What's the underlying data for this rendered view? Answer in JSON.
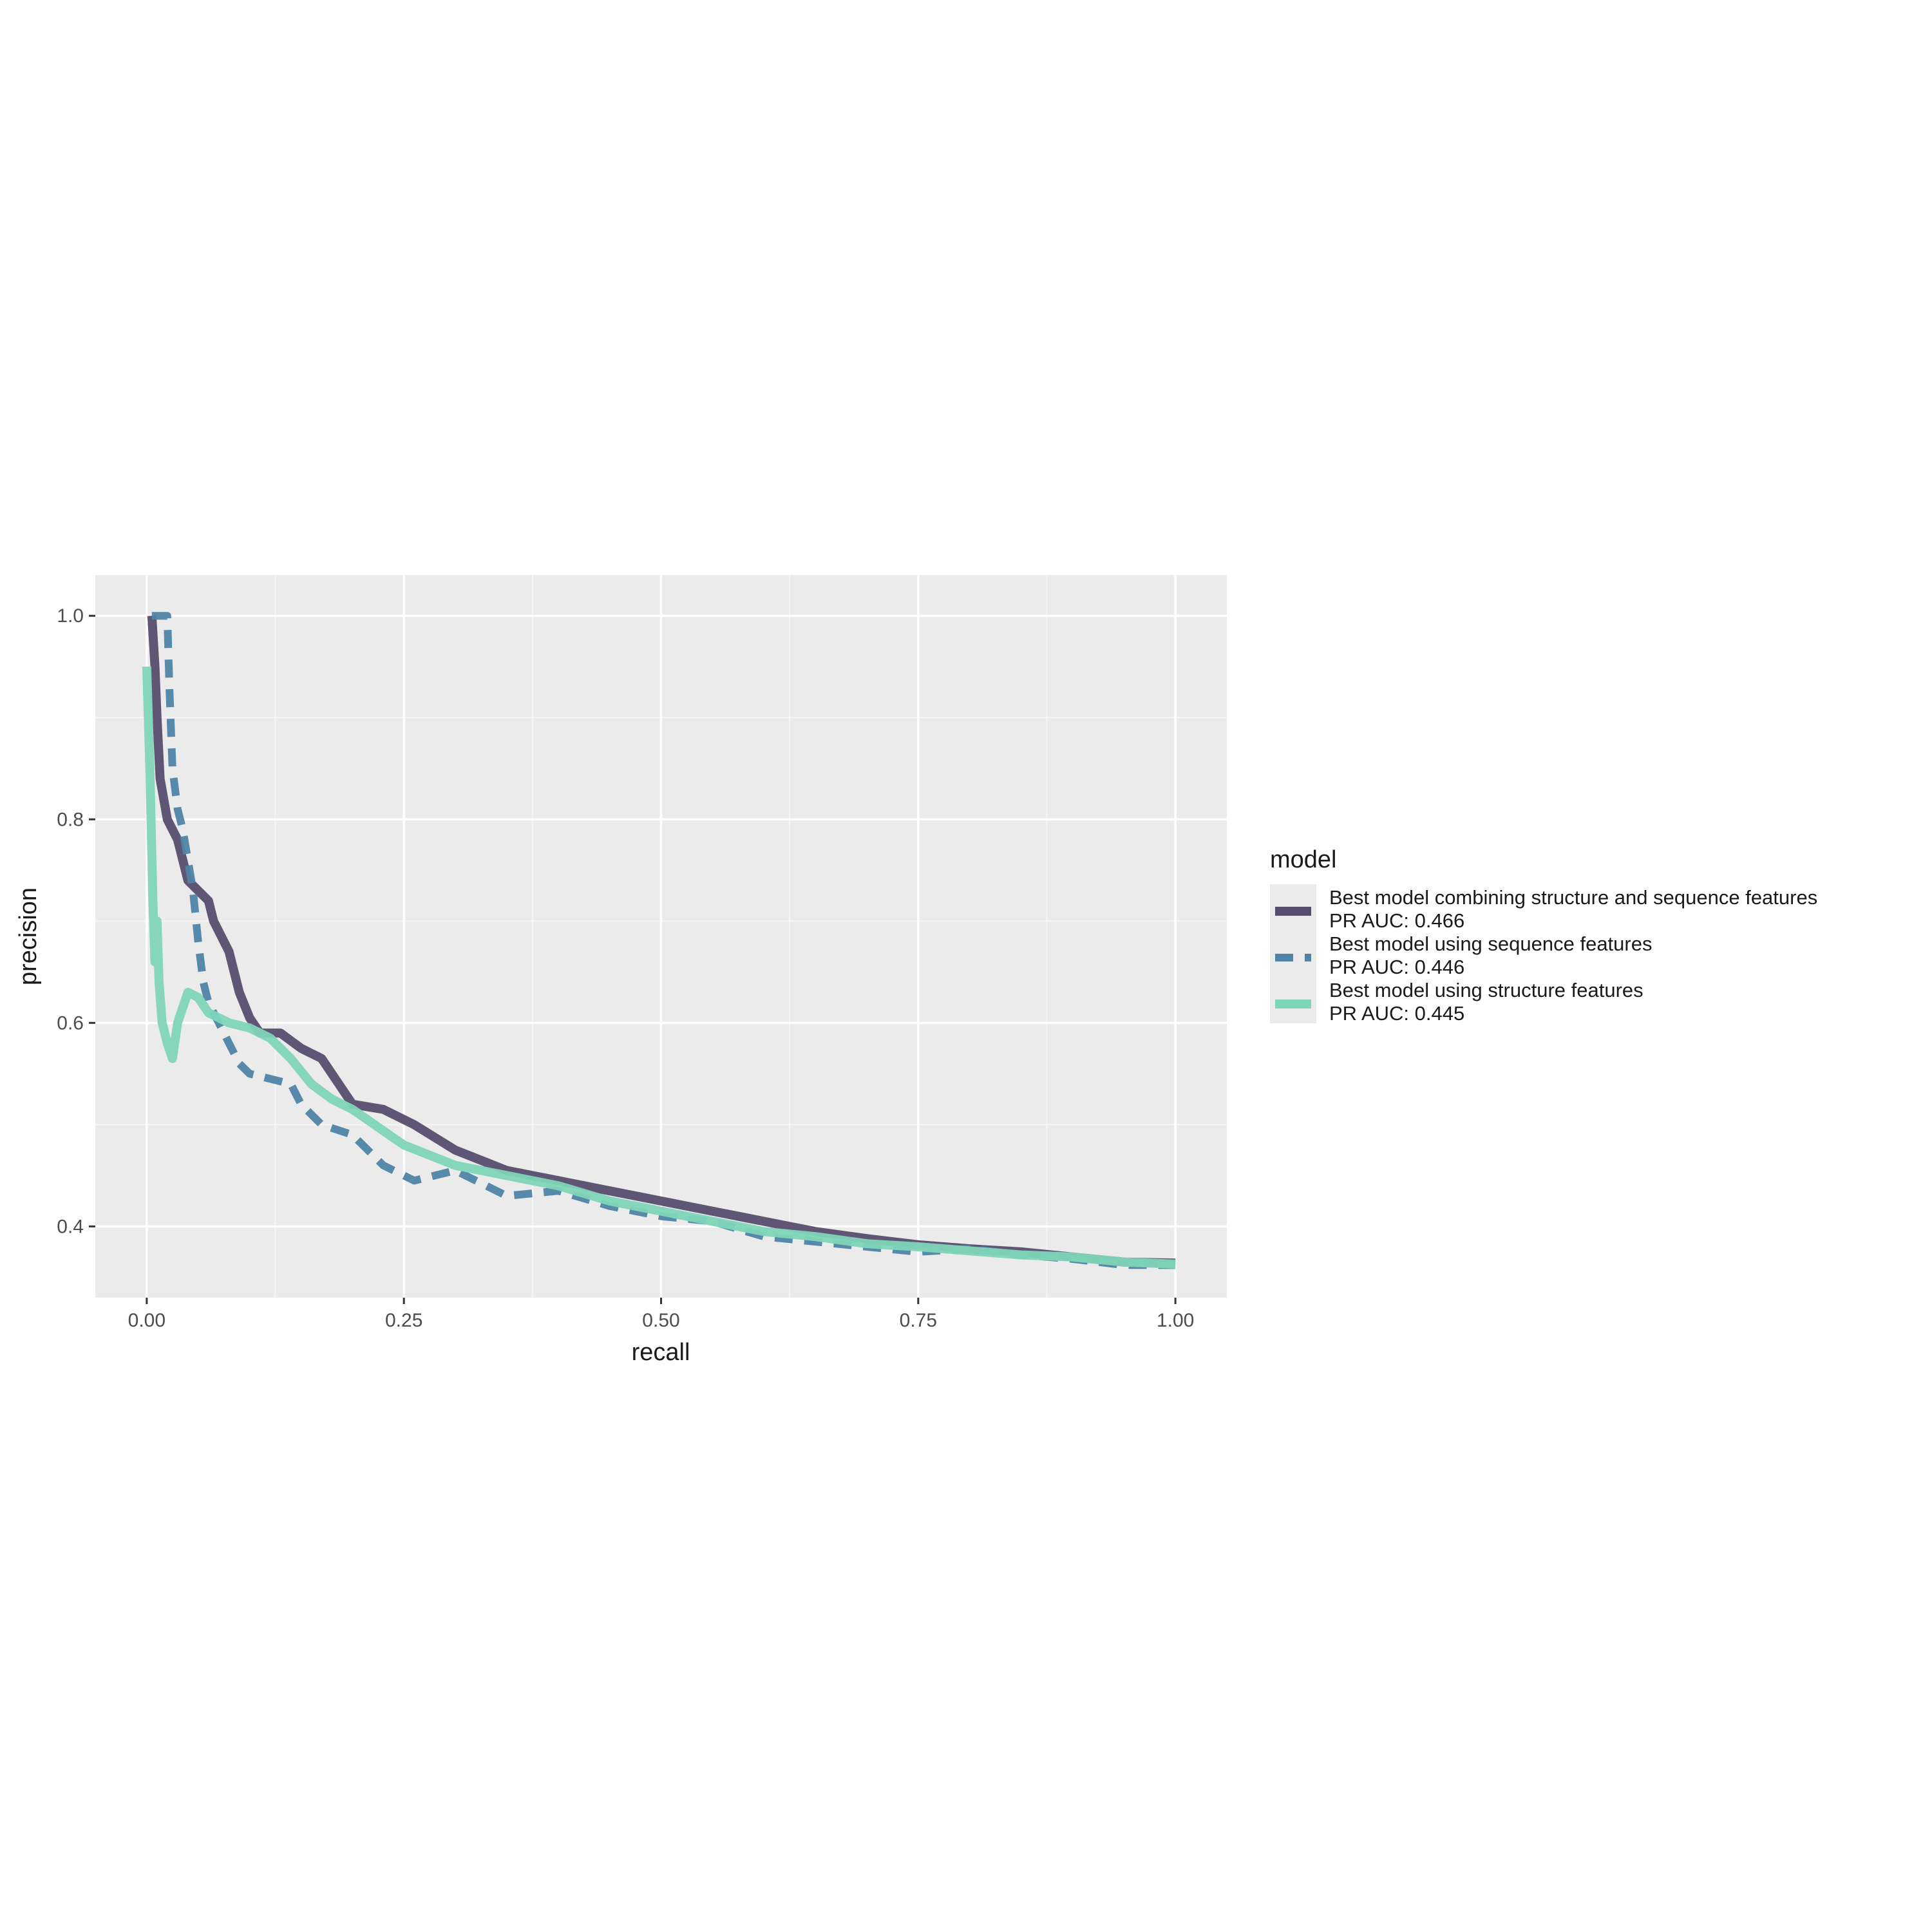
{
  "chart_data": {
    "type": "line",
    "title": "",
    "xlabel": "recall",
    "ylabel": "precision",
    "xlim": [
      -0.05,
      1.05
    ],
    "ylim": [
      0.33,
      1.04
    ],
    "x_ticks": [
      0.0,
      0.25,
      0.5,
      0.75,
      1.0
    ],
    "x_tick_labels": [
      "0.00",
      "0.25",
      "0.50",
      "0.75",
      "1.00"
    ],
    "y_ticks": [
      0.4,
      0.6,
      0.8,
      1.0
    ],
    "y_tick_labels": [
      "0.4",
      "0.6",
      "0.8",
      "1.0"
    ],
    "grid": true,
    "legend": {
      "title": "model",
      "position": "right"
    },
    "series": [
      {
        "name": "Best model combining structure and sequence features",
        "name_line2": "PR AUC: 0.466",
        "color": "#574d6e",
        "dash": "solid",
        "points": [
          [
            0.005,
            1.0
          ],
          [
            0.008,
            0.95
          ],
          [
            0.01,
            0.9
          ],
          [
            0.013,
            0.84
          ],
          [
            0.02,
            0.8
          ],
          [
            0.03,
            0.78
          ],
          [
            0.035,
            0.76
          ],
          [
            0.04,
            0.74
          ],
          [
            0.05,
            0.73
          ],
          [
            0.06,
            0.72
          ],
          [
            0.065,
            0.7
          ],
          [
            0.07,
            0.69
          ],
          [
            0.08,
            0.67
          ],
          [
            0.09,
            0.63
          ],
          [
            0.1,
            0.605
          ],
          [
            0.11,
            0.59
          ],
          [
            0.13,
            0.59
          ],
          [
            0.15,
            0.575
          ],
          [
            0.17,
            0.565
          ],
          [
            0.2,
            0.52
          ],
          [
            0.23,
            0.515
          ],
          [
            0.26,
            0.5
          ],
          [
            0.3,
            0.475
          ],
          [
            0.35,
            0.455
          ],
          [
            0.4,
            0.445
          ],
          [
            0.45,
            0.435
          ],
          [
            0.5,
            0.425
          ],
          [
            0.55,
            0.415
          ],
          [
            0.6,
            0.405
          ],
          [
            0.65,
            0.395
          ],
          [
            0.7,
            0.388
          ],
          [
            0.75,
            0.382
          ],
          [
            0.8,
            0.378
          ],
          [
            0.85,
            0.375
          ],
          [
            0.9,
            0.37
          ],
          [
            0.95,
            0.365
          ],
          [
            1.0,
            0.364
          ]
        ]
      },
      {
        "name": "Best model using sequence features",
        "name_line2": "PR AUC: 0.446",
        "color": "#4f84a6",
        "dash": "dashed",
        "points": [
          [
            0.005,
            1.0
          ],
          [
            0.01,
            1.0
          ],
          [
            0.015,
            1.0
          ],
          [
            0.02,
            1.0
          ],
          [
            0.022,
            0.93
          ],
          [
            0.025,
            0.85
          ],
          [
            0.03,
            0.81
          ],
          [
            0.035,
            0.79
          ],
          [
            0.04,
            0.76
          ],
          [
            0.045,
            0.73
          ],
          [
            0.05,
            0.68
          ],
          [
            0.055,
            0.64
          ],
          [
            0.06,
            0.62
          ],
          [
            0.07,
            0.6
          ],
          [
            0.08,
            0.58
          ],
          [
            0.09,
            0.56
          ],
          [
            0.1,
            0.55
          ],
          [
            0.12,
            0.545
          ],
          [
            0.14,
            0.54
          ],
          [
            0.15,
            0.52
          ],
          [
            0.17,
            0.5
          ],
          [
            0.2,
            0.49
          ],
          [
            0.23,
            0.46
          ],
          [
            0.26,
            0.445
          ],
          [
            0.3,
            0.455
          ],
          [
            0.35,
            0.43
          ],
          [
            0.4,
            0.435
          ],
          [
            0.45,
            0.42
          ],
          [
            0.5,
            0.41
          ],
          [
            0.55,
            0.405
          ],
          [
            0.6,
            0.39
          ],
          [
            0.65,
            0.385
          ],
          [
            0.7,
            0.38
          ],
          [
            0.75,
            0.375
          ],
          [
            0.8,
            0.378
          ],
          [
            0.85,
            0.372
          ],
          [
            0.9,
            0.368
          ],
          [
            0.95,
            0.362
          ],
          [
            1.0,
            0.362
          ]
        ]
      },
      {
        "name": "Best model using structure features",
        "name_line2": "PR AUC: 0.445",
        "color": "#7fd5b8",
        "dash": "solid",
        "points": [
          [
            0.0,
            0.95
          ],
          [
            0.003,
            0.85
          ],
          [
            0.006,
            0.72
          ],
          [
            0.008,
            0.66
          ],
          [
            0.01,
            0.7
          ],
          [
            0.012,
            0.64
          ],
          [
            0.015,
            0.6
          ],
          [
            0.02,
            0.58
          ],
          [
            0.025,
            0.565
          ],
          [
            0.03,
            0.6
          ],
          [
            0.04,
            0.63
          ],
          [
            0.05,
            0.625
          ],
          [
            0.06,
            0.61
          ],
          [
            0.07,
            0.605
          ],
          [
            0.08,
            0.6
          ],
          [
            0.1,
            0.595
          ],
          [
            0.12,
            0.585
          ],
          [
            0.14,
            0.565
          ],
          [
            0.16,
            0.54
          ],
          [
            0.18,
            0.525
          ],
          [
            0.2,
            0.515
          ],
          [
            0.25,
            0.48
          ],
          [
            0.3,
            0.46
          ],
          [
            0.35,
            0.45
          ],
          [
            0.4,
            0.44
          ],
          [
            0.45,
            0.425
          ],
          [
            0.5,
            0.415
          ],
          [
            0.55,
            0.405
          ],
          [
            0.6,
            0.395
          ],
          [
            0.65,
            0.39
          ],
          [
            0.7,
            0.383
          ],
          [
            0.75,
            0.38
          ],
          [
            0.8,
            0.376
          ],
          [
            0.85,
            0.372
          ],
          [
            0.9,
            0.37
          ],
          [
            0.95,
            0.365
          ],
          [
            1.0,
            0.363
          ]
        ]
      }
    ]
  }
}
